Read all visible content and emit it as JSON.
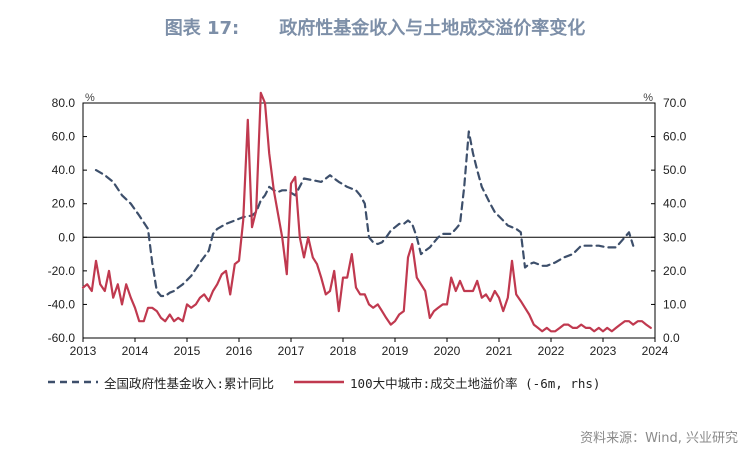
{
  "figure": {
    "number": "图表 17:",
    "title": "政府性基金收入与土地成交溢价率变化",
    "source": "资料来源：Wind, 兴业研究"
  },
  "colors": {
    "series1": "#3d4f6b",
    "series2": "#c0394f",
    "title": "#7d8fa8"
  },
  "chart_data": {
    "type": "line",
    "left_axis": {
      "unit": "%",
      "ylim": [
        -60,
        80
      ],
      "ticks": [
        "80.0",
        "60.0",
        "40.0",
        "20.0",
        "0.0",
        "-20.0",
        "-40.0",
        "-60.0"
      ]
    },
    "right_axis": {
      "unit": "%",
      "ylim": [
        0,
        70
      ],
      "ticks": [
        "70.0",
        "60.0",
        "50.0",
        "40.0",
        "30.0",
        "20.0",
        "10.0",
        "0.0"
      ]
    },
    "x_ticks": [
      "2013",
      "2014",
      "2015",
      "2016",
      "2017",
      "2018",
      "2019",
      "2020",
      "2021",
      "2022",
      "2023",
      "2024"
    ],
    "xlim": [
      2013.0,
      2024.0
    ],
    "series": [
      {
        "name": "全国政府性基金收入:累计同比",
        "axis": "left",
        "style": "dashed",
        "x": [
          2013.25,
          2013.42,
          2013.58,
          2013.75,
          2013.92,
          2014.08,
          2014.25,
          2014.33,
          2014.42,
          2014.5,
          2014.58,
          2014.67,
          2014.75,
          2014.83,
          2014.92,
          2015.08,
          2015.25,
          2015.42,
          2015.5,
          2015.58,
          2015.75,
          2015.92,
          2016.08,
          2016.25,
          2016.33,
          2016.42,
          2016.5,
          2016.58,
          2016.67,
          2016.75,
          2016.83,
          2016.92,
          2017.08,
          2017.25,
          2017.42,
          2017.58,
          2017.67,
          2017.75,
          2017.83,
          2017.92,
          2018.08,
          2018.25,
          2018.33,
          2018.42,
          2018.5,
          2018.58,
          2018.67,
          2018.75,
          2018.83,
          2018.92,
          2019.08,
          2019.17,
          2019.25,
          2019.33,
          2019.42,
          2019.5,
          2019.58,
          2019.67,
          2019.75,
          2019.83,
          2019.92,
          2020.08,
          2020.17,
          2020.25,
          2020.33,
          2020.42,
          2020.5,
          2020.58,
          2020.67,
          2020.75,
          2020.83,
          2020.92,
          2021.08,
          2021.17,
          2021.25,
          2021.33,
          2021.42,
          2021.5,
          2021.58,
          2021.67,
          2021.75,
          2021.83,
          2021.92,
          2022.08,
          2022.25,
          2022.42,
          2022.58,
          2022.75,
          2022.92,
          2023.08,
          2023.25,
          2023.42,
          2023.5,
          2023.58
        ],
        "values": [
          40,
          37,
          33,
          25,
          20,
          13,
          5,
          -15,
          -32,
          -35,
          -35,
          -33,
          -32,
          -30,
          -28,
          -23,
          -15,
          -8,
          2,
          5,
          8,
          10,
          12,
          13,
          15,
          22,
          25,
          30,
          28,
          27,
          28,
          28,
          25,
          35,
          34,
          33,
          35,
          37,
          35,
          33,
          30,
          28,
          25,
          20,
          0,
          -3,
          -4,
          -3,
          0,
          4,
          8,
          8,
          10,
          8,
          0,
          -10,
          -8,
          -6,
          -3,
          0,
          2,
          2,
          5,
          8,
          30,
          63,
          50,
          40,
          30,
          25,
          20,
          15,
          10,
          7,
          6,
          5,
          3,
          -18,
          -16,
          -15,
          -16,
          -17,
          -17,
          -15,
          -12,
          -10,
          -5,
          -5,
          -5,
          -6,
          -6,
          0,
          3,
          -5
        ]
      },
      {
        "name": "100大中城市:成交土地溢价率 (-6m, rhs)",
        "axis": "right",
        "style": "solid",
        "x": [
          2013.0,
          2013.08,
          2013.17,
          2013.25,
          2013.33,
          2013.42,
          2013.5,
          2013.58,
          2013.67,
          2013.75,
          2013.83,
          2013.92,
          2014.0,
          2014.08,
          2014.17,
          2014.25,
          2014.33,
          2014.42,
          2014.5,
          2014.58,
          2014.67,
          2014.75,
          2014.83,
          2014.92,
          2015.0,
          2015.08,
          2015.17,
          2015.25,
          2015.33,
          2015.42,
          2015.5,
          2015.58,
          2015.67,
          2015.75,
          2015.83,
          2015.92,
          2016.0,
          2016.08,
          2016.17,
          2016.25,
          2016.33,
          2016.42,
          2016.5,
          2016.58,
          2016.67,
          2016.75,
          2016.83,
          2016.92,
          2017.0,
          2017.08,
          2017.17,
          2017.25,
          2017.33,
          2017.42,
          2017.5,
          2017.58,
          2017.67,
          2017.75,
          2017.83,
          2017.92,
          2018.0,
          2018.08,
          2018.17,
          2018.25,
          2018.33,
          2018.42,
          2018.5,
          2018.58,
          2018.67,
          2018.75,
          2018.83,
          2018.92,
          2019.0,
          2019.08,
          2019.17,
          2019.25,
          2019.33,
          2019.42,
          2019.5,
          2019.58,
          2019.67,
          2019.75,
          2019.83,
          2019.92,
          2020.0,
          2020.08,
          2020.17,
          2020.25,
          2020.33,
          2020.42,
          2020.5,
          2020.58,
          2020.67,
          2020.75,
          2020.83,
          2020.92,
          2021.0,
          2021.08,
          2021.17,
          2021.25,
          2021.33,
          2021.42,
          2021.5,
          2021.58,
          2021.67,
          2021.75,
          2021.83,
          2021.92,
          2022.0,
          2022.08,
          2022.17,
          2022.25,
          2022.33,
          2022.42,
          2022.5,
          2022.58,
          2022.67,
          2022.75,
          2022.83,
          2022.92,
          2023.0,
          2023.08,
          2023.17,
          2023.25,
          2023.33,
          2023.42,
          2023.5,
          2023.58,
          2023.67,
          2023.75,
          2023.83,
          2023.92
        ],
        "values": [
          15,
          16,
          14,
          23,
          16,
          14,
          20,
          12,
          16,
          10,
          16,
          12,
          9,
          5,
          5,
          9,
          9,
          8,
          6,
          5,
          7,
          5,
          6,
          5,
          10,
          9,
          10,
          12,
          13,
          11,
          14,
          16,
          19,
          20,
          13,
          22,
          23,
          35,
          65,
          33,
          38,
          73,
          70,
          55,
          44,
          37,
          30,
          19,
          46,
          48,
          30,
          24,
          30,
          24,
          22,
          18,
          13,
          14,
          20,
          8,
          18,
          18,
          25,
          15,
          13,
          13,
          10,
          9,
          10,
          8,
          6,
          4,
          5,
          7,
          8,
          24,
          28,
          18,
          16,
          14,
          6,
          8,
          9,
          10,
          10,
          18,
          14,
          17,
          14,
          14,
          14,
          17,
          12,
          13,
          11,
          14,
          12,
          8,
          12,
          23,
          13,
          11,
          9,
          7,
          4,
          3,
          2,
          3,
          2,
          2,
          3,
          4,
          4,
          3,
          3,
          4,
          3,
          3,
          2,
          3,
          2,
          3,
          2,
          3,
          4,
          5,
          5,
          4,
          5,
          5,
          4,
          3
        ]
      }
    ]
  }
}
